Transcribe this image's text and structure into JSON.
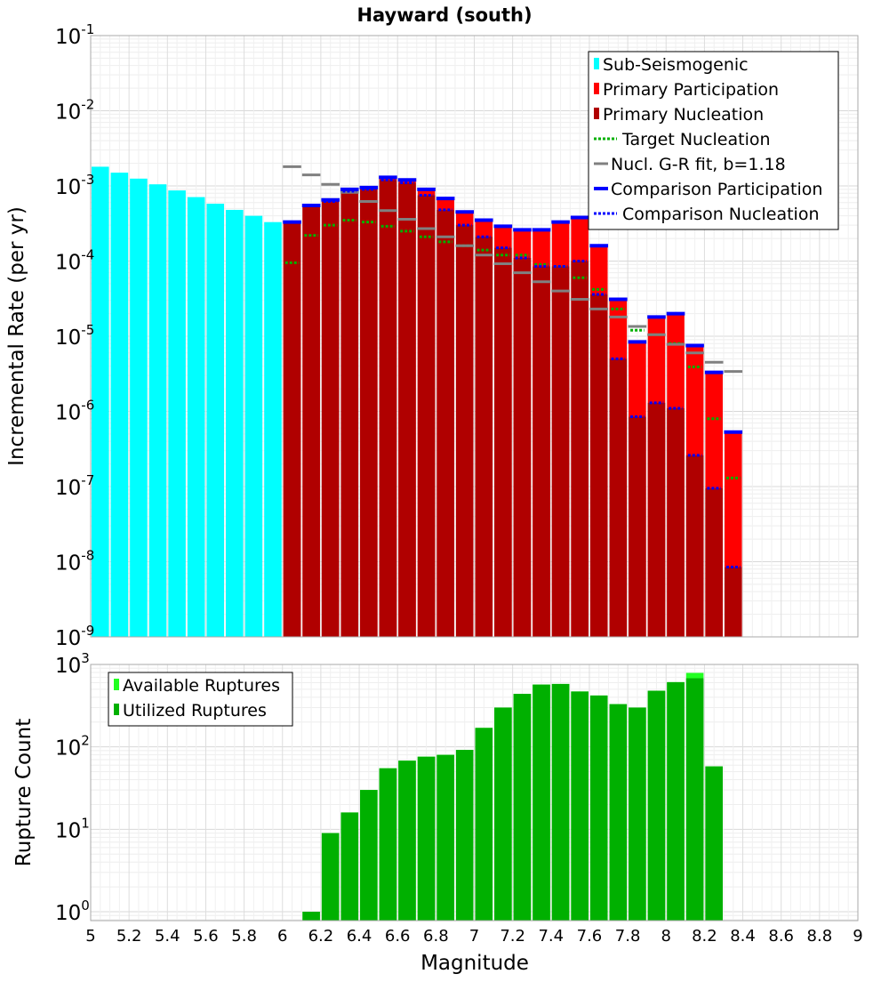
{
  "chart_data": [
    {
      "type": "bar",
      "title": "Hayward (south)",
      "xlabel": "",
      "ylabel": "Incremental Rate (per yr)",
      "yscale": "log",
      "xlim": [
        5,
        9
      ],
      "ylim": [
        1e-09,
        0.1
      ],
      "bin_width": 0.1,
      "grid": true,
      "legend": "top-right",
      "x_ticks": [
        "5",
        "5.2",
        "5.4",
        "5.6",
        "5.8",
        "6",
        "6.2",
        "6.4",
        "6.6",
        "6.8",
        "7",
        "7.2",
        "7.4",
        "7.6",
        "7.8",
        "8",
        "8.2",
        "8.4",
        "8.6",
        "8.8",
        "9"
      ],
      "y_ticks": [
        {
          "base": "10",
          "exp": "-1"
        },
        {
          "base": "10",
          "exp": "-2"
        },
        {
          "base": "10",
          "exp": "-3"
        },
        {
          "base": "10",
          "exp": "-4"
        },
        {
          "base": "10",
          "exp": "-5"
        },
        {
          "base": "10",
          "exp": "-6"
        },
        {
          "base": "10",
          "exp": "-7"
        },
        {
          "base": "10",
          "exp": "-8"
        },
        {
          "base": "10",
          "exp": "-9"
        }
      ],
      "series": [
        {
          "name": "Sub-Seismogenic",
          "style": "bar",
          "color": "#00ffff",
          "x": [
            5.05,
            5.15,
            5.25,
            5.35,
            5.45,
            5.55,
            5.65,
            5.75,
            5.85,
            5.95
          ],
          "values": [
            0.0018,
            0.0015,
            0.00125,
            0.00105,
            0.00087,
            0.00071,
            0.00058,
            0.00048,
            0.0004,
            0.00033
          ]
        },
        {
          "name": "Primary Participation",
          "style": "bar",
          "color": "#ff0000",
          "x": [
            6.05,
            6.15,
            6.25,
            6.35,
            6.45,
            6.55,
            6.65,
            6.75,
            6.85,
            6.95,
            7.05,
            7.15,
            7.25,
            7.35,
            7.45,
            7.55,
            7.65,
            7.75,
            7.85,
            7.95,
            8.05,
            8.15,
            8.25,
            8.35
          ],
          "values": [
            0.00033,
            0.00055,
            0.00065,
            0.0009,
            0.00095,
            0.0013,
            0.0012,
            0.0009,
            0.00068,
            0.00045,
            0.00035,
            0.00029,
            0.00026,
            0.00026,
            0.00033,
            0.00038,
            0.00016,
            3.1e-05,
            8.4e-06,
            1.8e-05,
            2e-05,
            7.5e-06,
            3.3e-06,
            5.3e-07
          ]
        },
        {
          "name": "Primary Nucleation",
          "style": "bar",
          "color": "#b00000",
          "x": [
            6.05,
            6.15,
            6.25,
            6.35,
            6.45,
            6.55,
            6.65,
            6.75,
            6.85,
            6.95,
            7.05,
            7.15,
            7.25,
            7.35,
            7.45,
            7.55,
            7.65,
            7.75,
            7.85,
            7.95,
            8.05,
            8.15,
            8.25,
            8.35
          ],
          "values": [
            0.00033,
            0.00055,
            0.00062,
            0.00085,
            0.0009,
            0.0012,
            0.0011,
            0.00075,
            0.00048,
            0.0003,
            0.00021,
            0.00015,
            0.00011,
            8.5e-05,
            8.5e-05,
            0.0001,
            3.6e-05,
            5e-06,
            8.5e-07,
            1.3e-06,
            1.1e-06,
            2.6e-07,
            9.5e-08,
            8.5e-09
          ]
        },
        {
          "name": "Target Nucleation",
          "style": "dotted",
          "color": "#00b000",
          "x": [
            6.05,
            6.15,
            6.25,
            6.35,
            6.45,
            6.55,
            6.65,
            6.75,
            6.85,
            6.95,
            7.05,
            7.15,
            7.25,
            7.35,
            7.45,
            7.55,
            7.65,
            7.75,
            7.85,
            7.95,
            8.05,
            8.15,
            8.25,
            8.35
          ],
          "values": [
            9.5e-05,
            0.00022,
            0.0003,
            0.00035,
            0.00033,
            0.00029,
            0.00025,
            0.00021,
            0.00018,
            0.00016,
            0.00014,
            0.00012,
            0.00012,
            9e-05,
            8.5e-05,
            6e-05,
            4.2e-05,
            2.3e-05,
            1.2e-05,
            1.05e-05,
            8e-06,
            3.9e-06,
            8e-07,
            1.3e-07
          ]
        },
        {
          "name": "Nucl. G-R fit, b=1.18",
          "style": "step",
          "color": "#808080",
          "x": [
            6.05,
            6.15,
            6.25,
            6.35,
            6.45,
            6.55,
            6.65,
            6.75,
            6.85,
            6.95,
            7.05,
            7.15,
            7.25,
            7.35,
            7.45,
            7.55,
            7.65,
            7.75,
            7.85,
            7.95,
            8.05,
            8.15,
            8.25,
            8.35
          ],
          "values": [
            0.0018,
            0.0014,
            0.00105,
            0.00082,
            0.00062,
            0.00047,
            0.00036,
            0.00027,
            0.00021,
            0.00016,
            0.00012,
            9.2e-05,
            7e-05,
            5.3e-05,
            4e-05,
            3.1e-05,
            2.3e-05,
            1.8e-05,
            1.35e-05,
            1.05e-05,
            7.8e-06,
            6e-06,
            4.5e-06,
            3.4e-06
          ]
        },
        {
          "name": "Comparison Participation",
          "style": "step",
          "color": "#0000ff",
          "x": [
            6.05,
            6.15,
            6.25,
            6.35,
            6.45,
            6.55,
            6.65,
            6.75,
            6.85,
            6.95,
            7.05,
            7.15,
            7.25,
            7.35,
            7.45,
            7.55,
            7.65,
            7.75,
            7.85,
            7.95,
            8.05,
            8.15,
            8.25,
            8.35
          ],
          "values": [
            0.00033,
            0.00055,
            0.00065,
            0.0009,
            0.00095,
            0.0013,
            0.0012,
            0.0009,
            0.00068,
            0.00045,
            0.00035,
            0.00029,
            0.00026,
            0.00026,
            0.00033,
            0.00038,
            0.00016,
            3.1e-05,
            8.4e-06,
            1.8e-05,
            2e-05,
            7.5e-06,
            3.3e-06,
            5.3e-07
          ]
        },
        {
          "name": "Comparison Nucleation",
          "style": "dotted",
          "color": "#0000ff",
          "x": [
            6.05,
            6.15,
            6.25,
            6.35,
            6.45,
            6.55,
            6.65,
            6.75,
            6.85,
            6.95,
            7.05,
            7.15,
            7.25,
            7.35,
            7.45,
            7.55,
            7.65,
            7.75,
            7.85,
            7.95,
            8.05,
            8.15,
            8.25,
            8.35
          ],
          "values": [
            0.00033,
            0.00055,
            0.00062,
            0.00085,
            0.0009,
            0.0012,
            0.0011,
            0.00075,
            0.00048,
            0.0003,
            0.00021,
            0.00015,
            0.00011,
            8.5e-05,
            8.5e-05,
            0.0001,
            3.6e-05,
            5e-06,
            8.5e-07,
            1.3e-06,
            1.1e-06,
            2.6e-07,
            9.5e-08,
            8.5e-09
          ]
        }
      ]
    },
    {
      "type": "bar",
      "title": "",
      "xlabel": "Magnitude",
      "ylabel": "Rupture Count",
      "yscale": "log",
      "xlim": [
        5,
        9
      ],
      "ylim": [
        0.78,
        1000
      ],
      "bin_width": 0.1,
      "grid": true,
      "legend": "top-left",
      "x_ticks": [
        "5",
        "5.2",
        "5.4",
        "5.6",
        "5.8",
        "6",
        "6.2",
        "6.4",
        "6.6",
        "6.8",
        "7",
        "7.2",
        "7.4",
        "7.6",
        "7.8",
        "8",
        "8.2",
        "8.4",
        "8.6",
        "8.8",
        "9"
      ],
      "y_ticks": [
        {
          "base": "10",
          "exp": "3"
        },
        {
          "base": "10",
          "exp": "2"
        },
        {
          "base": "10",
          "exp": "1"
        },
        {
          "base": "10",
          "exp": "0"
        }
      ],
      "series": [
        {
          "name": "Available Ruptures",
          "style": "bar",
          "color": "#22ff22",
          "x": [
            6.15,
            6.25,
            6.35,
            6.45,
            6.55,
            6.65,
            6.75,
            6.85,
            6.95,
            7.05,
            7.15,
            7.25,
            7.35,
            7.45,
            7.55,
            7.65,
            7.75,
            7.85,
            7.95,
            8.05,
            8.15,
            8.25
          ],
          "values": [
            1,
            9,
            16,
            30,
            55,
            68,
            76,
            80,
            92,
            170,
            300,
            440,
            570,
            580,
            470,
            420,
            330,
            300,
            480,
            610,
            790,
            58
          ]
        },
        {
          "name": "Utilized Ruptures",
          "style": "bar",
          "color": "#00b000",
          "x": [
            6.15,
            6.25,
            6.35,
            6.45,
            6.55,
            6.65,
            6.75,
            6.85,
            6.95,
            7.05,
            7.15,
            7.25,
            7.35,
            7.45,
            7.55,
            7.65,
            7.75,
            7.85,
            7.95,
            8.05,
            8.15,
            8.25
          ],
          "values": [
            1,
            9,
            16,
            30,
            55,
            68,
            76,
            80,
            92,
            170,
            300,
            440,
            570,
            580,
            470,
            420,
            330,
            300,
            480,
            610,
            680,
            58
          ]
        }
      ]
    }
  ]
}
